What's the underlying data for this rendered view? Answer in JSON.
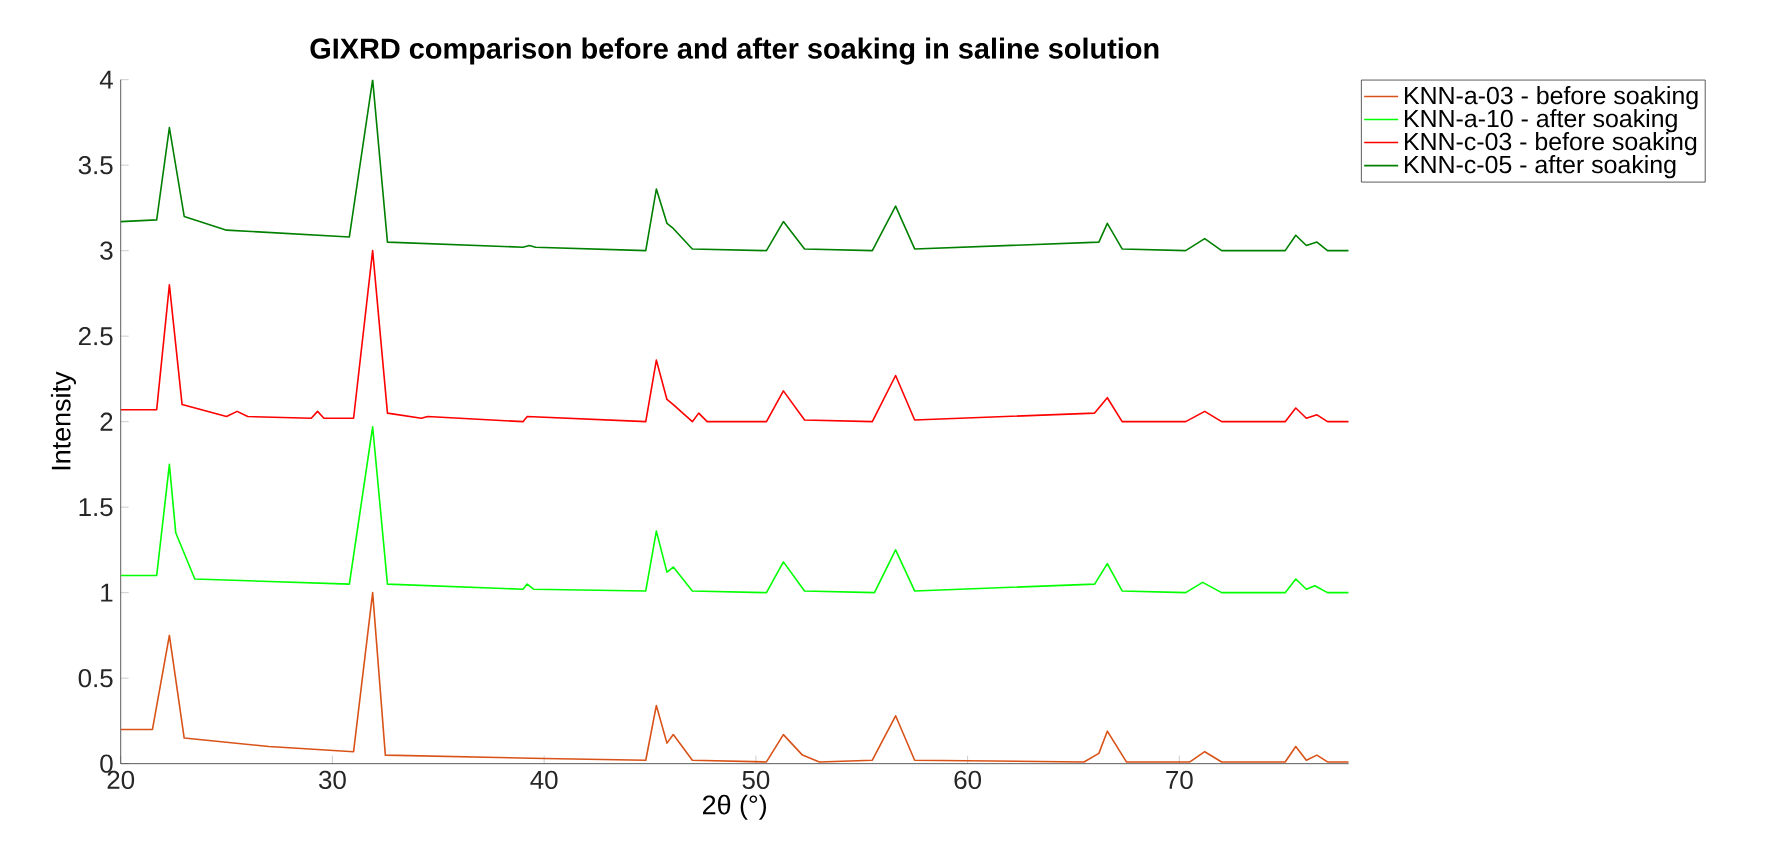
{
  "chart_data": {
    "type": "line",
    "title": "GIXRD comparison before and after soaking in saline solution",
    "xlabel": "2θ (°)",
    "ylabel": "Intensity",
    "xlim": [
      20,
      78
    ],
    "ylim": [
      0,
      4
    ],
    "xticks": [
      20,
      30,
      40,
      50,
      60,
      70
    ],
    "yticks": [
      0,
      0.5,
      1,
      1.5,
      2,
      2.5,
      3,
      3.5,
      4
    ],
    "legend": "top right",
    "grid": false,
    "line_style": "solid",
    "marker": "none",
    "series": [
      {
        "name": "KNN-a-03 - before soaking",
        "color": "#d95319",
        "x": [
          20,
          21.5,
          22.3,
          23,
          27,
          31,
          31.9,
          32.5,
          40,
          44.8,
          45.3,
          45.8,
          46.1,
          47,
          50.5,
          51.3,
          52.2,
          53,
          55.5,
          56.6,
          57.5,
          65.5,
          66.2,
          66.6,
          67.5,
          70.5,
          71.2,
          72,
          75,
          75.5,
          76,
          76.5,
          77,
          78
        ],
        "values": [
          0.2,
          0.2,
          0.75,
          0.15,
          0.1,
          0.07,
          1.0,
          0.05,
          0.03,
          0.02,
          0.34,
          0.12,
          0.17,
          0.02,
          0.01,
          0.17,
          0.05,
          0.01,
          0.02,
          0.28,
          0.02,
          0.01,
          0.06,
          0.19,
          0.01,
          0.01,
          0.07,
          0.01,
          0.01,
          0.1,
          0.02,
          0.05,
          0.01,
          0.01
        ]
      },
      {
        "name": "KNN-a-10 - after soaking",
        "color": "#00ff00",
        "x": [
          20,
          21.7,
          22.3,
          22.6,
          23.5,
          30.8,
          31.9,
          32.6,
          39,
          39.2,
          39.5,
          44.8,
          45.3,
          45.8,
          46.1,
          47,
          50.5,
          51.3,
          52.3,
          55.6,
          56.6,
          57.5,
          66,
          66.6,
          67.3,
          70.3,
          71.1,
          72,
          75,
          75.5,
          76,
          76.4,
          77,
          78
        ],
        "values": [
          1.1,
          1.1,
          1.75,
          1.35,
          1.08,
          1.05,
          1.97,
          1.05,
          1.02,
          1.05,
          1.02,
          1.01,
          1.36,
          1.12,
          1.15,
          1.01,
          1.0,
          1.18,
          1.01,
          1.0,
          1.25,
          1.01,
          1.05,
          1.17,
          1.01,
          1.0,
          1.06,
          1.0,
          1.0,
          1.08,
          1.02,
          1.04,
          1.0,
          1.0
        ]
      },
      {
        "name": "KNN-c-03 - before soaking",
        "color": "#ff0000",
        "x": [
          20,
          21.7,
          22.3,
          22.9,
          25,
          25.5,
          26,
          29,
          29.3,
          29.6,
          31,
          31.9,
          32.6,
          34.2,
          34.5,
          39,
          39.2,
          44.8,
          45.3,
          45.8,
          46.1,
          47,
          47.3,
          47.7,
          50.5,
          51.3,
          52.3,
          55.5,
          56.6,
          57.5,
          66,
          66.6,
          67.3,
          70.3,
          71.2,
          72,
          75,
          75.5,
          76,
          76.5,
          77,
          78
        ],
        "values": [
          2.07,
          2.07,
          2.8,
          2.1,
          2.03,
          2.06,
          2.03,
          2.02,
          2.06,
          2.02,
          2.02,
          3.0,
          2.05,
          2.02,
          2.03,
          2.0,
          2.03,
          2.0,
          2.36,
          2.13,
          2.1,
          2.0,
          2.05,
          2.0,
          2.0,
          2.18,
          2.01,
          2.0,
          2.27,
          2.01,
          2.05,
          2.14,
          2.0,
          2.0,
          2.06,
          2.0,
          2.0,
          2.08,
          2.02,
          2.04,
          2.0,
          2.0
        ]
      },
      {
        "name": "KNN-c-05 - after soaking",
        "color": "#008000",
        "x": [
          20,
          21.7,
          22.3,
          23,
          25,
          30.8,
          31.9,
          32.6,
          39,
          39.3,
          39.6,
          44.8,
          45.3,
          45.8,
          46.1,
          47,
          50.5,
          51.3,
          52.3,
          55.5,
          56.6,
          57.5,
          66.2,
          66.6,
          67.3,
          70.3,
          71.2,
          72,
          75,
          75.5,
          76,
          76.5,
          77,
          78
        ],
        "values": [
          3.17,
          3.18,
          3.72,
          3.2,
          3.12,
          3.08,
          4.0,
          3.05,
          3.02,
          3.03,
          3.02,
          3.0,
          3.36,
          3.16,
          3.13,
          3.01,
          3.0,
          3.17,
          3.01,
          3.0,
          3.26,
          3.01,
          3.05,
          3.16,
          3.01,
          3.0,
          3.07,
          3.0,
          3.0,
          3.09,
          3.03,
          3.05,
          3.0,
          3.0
        ]
      }
    ]
  }
}
